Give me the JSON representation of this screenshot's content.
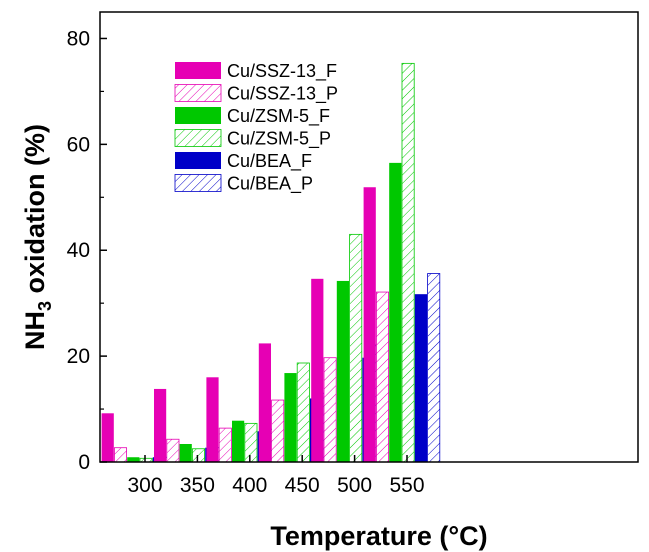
{
  "chart_data": {
    "type": "bar",
    "title": "",
    "xlabel": "Temperature (°C)",
    "ylabel_main": "NH",
    "ylabel_sub": "3",
    "ylabel_rest": " oxidation (%)",
    "categories": [
      "300",
      "350",
      "400",
      "450",
      "500",
      "550"
    ],
    "ylim": [
      0,
      85
    ],
    "yticks": [
      0,
      20,
      40,
      60,
      80
    ],
    "grid": false,
    "legend_position": "top-left",
    "series": [
      {
        "name": "Cu/SSZ-13_F",
        "color": "#e600b4",
        "pattern": "solid",
        "values": [
          9.2,
          13.8,
          16.0,
          22.4,
          34.6,
          51.9
        ]
      },
      {
        "name": "Cu/SSZ-13_P",
        "color": "#e600b4",
        "pattern": "hatch",
        "values": [
          2.7,
          4.3,
          6.4,
          11.7,
          19.7,
          32.1
        ]
      },
      {
        "name": "Cu/ZSM-5_F",
        "color": "#00c800",
        "pattern": "solid",
        "values": [
          0.9,
          3.4,
          7.8,
          16.8,
          34.2,
          56.5
        ]
      },
      {
        "name": "Cu/ZSM-5_P",
        "color": "#00c800",
        "pattern": "hatch",
        "values": [
          0.7,
          2.5,
          7.3,
          18.7,
          43.0,
          75.3
        ]
      },
      {
        "name": "Cu/BEA_F",
        "color": "#0000c8",
        "pattern": "solid",
        "values": [
          0.9,
          2.7,
          5.8,
          12.0,
          19.7,
          31.7
        ]
      },
      {
        "name": "Cu/BEA_P",
        "color": "#0000c8",
        "pattern": "hatch",
        "values": [
          0.9,
          2.7,
          6.2,
          13.0,
          22.1,
          35.6
        ]
      }
    ]
  }
}
